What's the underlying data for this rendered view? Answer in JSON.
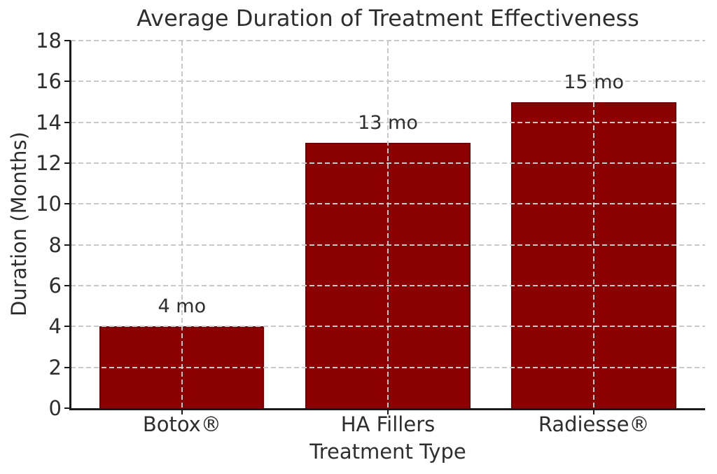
{
  "chart_data": {
    "type": "bar",
    "title": "Average Duration of Treatment Effectiveness",
    "xlabel": "Treatment Type",
    "ylabel": "Duration (Months)",
    "categories": [
      "Botox®",
      "HA Fillers",
      "Radiesse®"
    ],
    "values": [
      4,
      13,
      15
    ],
    "bar_labels": [
      "4 mo",
      "13 mo",
      "15 mo"
    ],
    "ylim": [
      0,
      18
    ],
    "yticks": [
      0,
      2,
      4,
      6,
      8,
      10,
      12,
      14,
      16,
      18
    ],
    "grid": {
      "horizontal": true,
      "vertical": true,
      "line_style": "dashed"
    },
    "legend": "none",
    "colors": {
      "bar_fill": "#8B0000",
      "bar_edge": "#6b0000",
      "grid": "#c9c9c9",
      "axis": "#1a1a1a",
      "text": "#2e2e2e",
      "background": "#ffffff"
    }
  }
}
